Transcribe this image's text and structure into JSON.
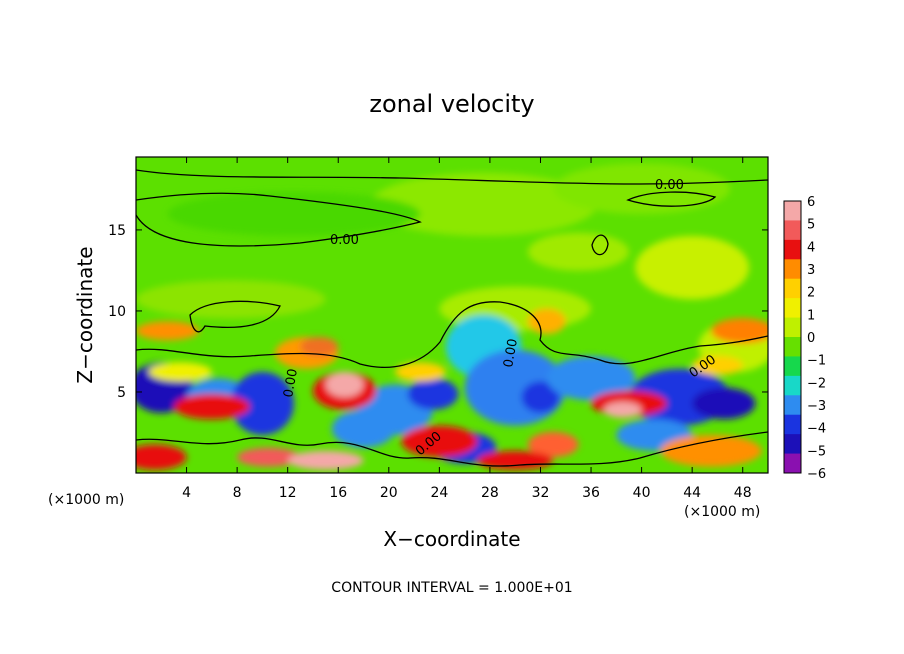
{
  "chart_data": {
    "type": "heatmap",
    "title": "zonal velocity",
    "xlabel": "X−coordinate",
    "ylabel": "Z−coordinate",
    "x_unit_label": "(×1000 m)",
    "footer": "CONTOUR INTERVAL = 1.000E+01",
    "xlim": [
      0,
      50
    ],
    "ylim": [
      0,
      19.5
    ],
    "x_ticks": [
      4,
      8,
      12,
      16,
      20,
      24,
      28,
      32,
      36,
      40,
      44,
      48
    ],
    "y_ticks": [
      5,
      10,
      15
    ],
    "colorbar": {
      "levels": [
        6,
        5,
        4,
        3,
        2,
        1,
        0,
        "−1",
        "−2",
        "−3",
        "−4",
        "−5",
        "−6"
      ],
      "colors": [
        "#f4a8a8",
        "#f25a5a",
        "#e81010",
        "#ff8c00",
        "#ffd000",
        "#f0f000",
        "#bff000",
        "#66e000",
        "#16d84c",
        "#18d8c8",
        "#2e8cf0",
        "#1a34e0",
        "#1c10b8",
        "#8a10b0"
      ]
    },
    "contour_label": "0.00",
    "contour_labels_shown": 6
  }
}
